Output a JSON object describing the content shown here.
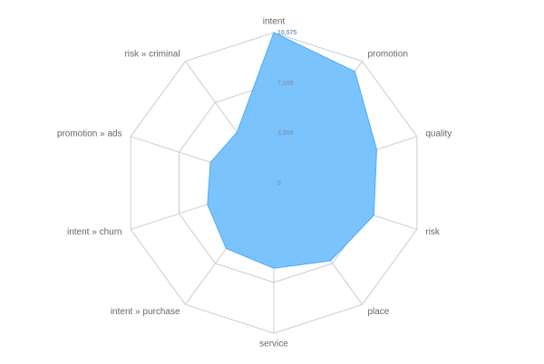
{
  "chart_data": {
    "type": "radar",
    "categories": [
      "intent",
      "promotion",
      "quality",
      "risk",
      "place",
      "service",
      "intent » purchase",
      "intent » churn",
      "promotion » ads",
      "risk » criminal"
    ],
    "values": [
      10575,
      9690,
      7600,
      7390,
      6770,
      6000,
      5700,
      4900,
      4680,
      4400
    ],
    "color": "#74c0fc",
    "stroke": "#4dabf7",
    "ylim": [
      0,
      10575
    ],
    "yticks": [
      0,
      {
        "value": 3500,
        "label": "3,500"
      },
      {
        "value": 7000,
        "label": "7,000"
      },
      {
        "value": 10575,
        "label": "10,575"
      }
    ],
    "grid": true
  }
}
